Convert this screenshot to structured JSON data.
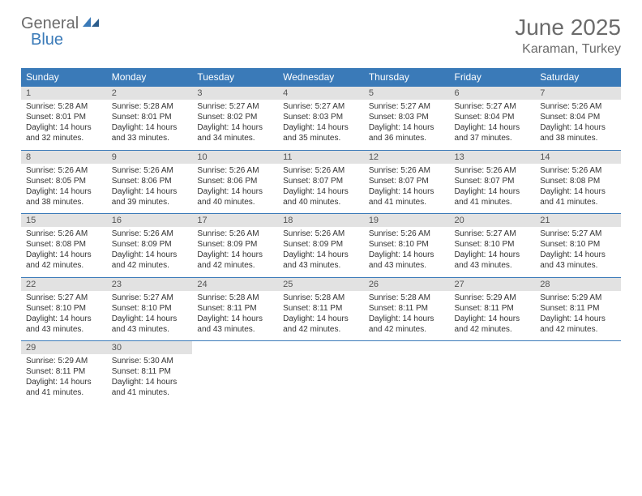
{
  "logo": {
    "text1": "General",
    "text2": "Blue"
  },
  "title": "June 2025",
  "location": "Karaman, Turkey",
  "colors": {
    "header_bg": "#3a7ab8",
    "header_fg": "#ffffff",
    "daynum_bg": "#e2e2e2",
    "daynum_fg": "#555555",
    "border": "#3a7ab8",
    "title_fg": "#6b6b6b",
    "logo_gray": "#6b6b6b",
    "logo_blue": "#3a7ab8"
  },
  "day_headers": [
    "Sunday",
    "Monday",
    "Tuesday",
    "Wednesday",
    "Thursday",
    "Friday",
    "Saturday"
  ],
  "weeks": [
    [
      {
        "n": "1",
        "sunrise": "Sunrise: 5:28 AM",
        "sunset": "Sunset: 8:01 PM",
        "day1": "Daylight: 14 hours",
        "day2": "and 32 minutes."
      },
      {
        "n": "2",
        "sunrise": "Sunrise: 5:28 AM",
        "sunset": "Sunset: 8:01 PM",
        "day1": "Daylight: 14 hours",
        "day2": "and 33 minutes."
      },
      {
        "n": "3",
        "sunrise": "Sunrise: 5:27 AM",
        "sunset": "Sunset: 8:02 PM",
        "day1": "Daylight: 14 hours",
        "day2": "and 34 minutes."
      },
      {
        "n": "4",
        "sunrise": "Sunrise: 5:27 AM",
        "sunset": "Sunset: 8:03 PM",
        "day1": "Daylight: 14 hours",
        "day2": "and 35 minutes."
      },
      {
        "n": "5",
        "sunrise": "Sunrise: 5:27 AM",
        "sunset": "Sunset: 8:03 PM",
        "day1": "Daylight: 14 hours",
        "day2": "and 36 minutes."
      },
      {
        "n": "6",
        "sunrise": "Sunrise: 5:27 AM",
        "sunset": "Sunset: 8:04 PM",
        "day1": "Daylight: 14 hours",
        "day2": "and 37 minutes."
      },
      {
        "n": "7",
        "sunrise": "Sunrise: 5:26 AM",
        "sunset": "Sunset: 8:04 PM",
        "day1": "Daylight: 14 hours",
        "day2": "and 38 minutes."
      }
    ],
    [
      {
        "n": "8",
        "sunrise": "Sunrise: 5:26 AM",
        "sunset": "Sunset: 8:05 PM",
        "day1": "Daylight: 14 hours",
        "day2": "and 38 minutes."
      },
      {
        "n": "9",
        "sunrise": "Sunrise: 5:26 AM",
        "sunset": "Sunset: 8:06 PM",
        "day1": "Daylight: 14 hours",
        "day2": "and 39 minutes."
      },
      {
        "n": "10",
        "sunrise": "Sunrise: 5:26 AM",
        "sunset": "Sunset: 8:06 PM",
        "day1": "Daylight: 14 hours",
        "day2": "and 40 minutes."
      },
      {
        "n": "11",
        "sunrise": "Sunrise: 5:26 AM",
        "sunset": "Sunset: 8:07 PM",
        "day1": "Daylight: 14 hours",
        "day2": "and 40 minutes."
      },
      {
        "n": "12",
        "sunrise": "Sunrise: 5:26 AM",
        "sunset": "Sunset: 8:07 PM",
        "day1": "Daylight: 14 hours",
        "day2": "and 41 minutes."
      },
      {
        "n": "13",
        "sunrise": "Sunrise: 5:26 AM",
        "sunset": "Sunset: 8:07 PM",
        "day1": "Daylight: 14 hours",
        "day2": "and 41 minutes."
      },
      {
        "n": "14",
        "sunrise": "Sunrise: 5:26 AM",
        "sunset": "Sunset: 8:08 PM",
        "day1": "Daylight: 14 hours",
        "day2": "and 41 minutes."
      }
    ],
    [
      {
        "n": "15",
        "sunrise": "Sunrise: 5:26 AM",
        "sunset": "Sunset: 8:08 PM",
        "day1": "Daylight: 14 hours",
        "day2": "and 42 minutes."
      },
      {
        "n": "16",
        "sunrise": "Sunrise: 5:26 AM",
        "sunset": "Sunset: 8:09 PM",
        "day1": "Daylight: 14 hours",
        "day2": "and 42 minutes."
      },
      {
        "n": "17",
        "sunrise": "Sunrise: 5:26 AM",
        "sunset": "Sunset: 8:09 PM",
        "day1": "Daylight: 14 hours",
        "day2": "and 42 minutes."
      },
      {
        "n": "18",
        "sunrise": "Sunrise: 5:26 AM",
        "sunset": "Sunset: 8:09 PM",
        "day1": "Daylight: 14 hours",
        "day2": "and 43 minutes."
      },
      {
        "n": "19",
        "sunrise": "Sunrise: 5:26 AM",
        "sunset": "Sunset: 8:10 PM",
        "day1": "Daylight: 14 hours",
        "day2": "and 43 minutes."
      },
      {
        "n": "20",
        "sunrise": "Sunrise: 5:27 AM",
        "sunset": "Sunset: 8:10 PM",
        "day1": "Daylight: 14 hours",
        "day2": "and 43 minutes."
      },
      {
        "n": "21",
        "sunrise": "Sunrise: 5:27 AM",
        "sunset": "Sunset: 8:10 PM",
        "day1": "Daylight: 14 hours",
        "day2": "and 43 minutes."
      }
    ],
    [
      {
        "n": "22",
        "sunrise": "Sunrise: 5:27 AM",
        "sunset": "Sunset: 8:10 PM",
        "day1": "Daylight: 14 hours",
        "day2": "and 43 minutes."
      },
      {
        "n": "23",
        "sunrise": "Sunrise: 5:27 AM",
        "sunset": "Sunset: 8:10 PM",
        "day1": "Daylight: 14 hours",
        "day2": "and 43 minutes."
      },
      {
        "n": "24",
        "sunrise": "Sunrise: 5:28 AM",
        "sunset": "Sunset: 8:11 PM",
        "day1": "Daylight: 14 hours",
        "day2": "and 43 minutes."
      },
      {
        "n": "25",
        "sunrise": "Sunrise: 5:28 AM",
        "sunset": "Sunset: 8:11 PM",
        "day1": "Daylight: 14 hours",
        "day2": "and 42 minutes."
      },
      {
        "n": "26",
        "sunrise": "Sunrise: 5:28 AM",
        "sunset": "Sunset: 8:11 PM",
        "day1": "Daylight: 14 hours",
        "day2": "and 42 minutes."
      },
      {
        "n": "27",
        "sunrise": "Sunrise: 5:29 AM",
        "sunset": "Sunset: 8:11 PM",
        "day1": "Daylight: 14 hours",
        "day2": "and 42 minutes."
      },
      {
        "n": "28",
        "sunrise": "Sunrise: 5:29 AM",
        "sunset": "Sunset: 8:11 PM",
        "day1": "Daylight: 14 hours",
        "day2": "and 42 minutes."
      }
    ],
    [
      {
        "n": "29",
        "sunrise": "Sunrise: 5:29 AM",
        "sunset": "Sunset: 8:11 PM",
        "day1": "Daylight: 14 hours",
        "day2": "and 41 minutes."
      },
      {
        "n": "30",
        "sunrise": "Sunrise: 5:30 AM",
        "sunset": "Sunset: 8:11 PM",
        "day1": "Daylight: 14 hours",
        "day2": "and 41 minutes."
      },
      null,
      null,
      null,
      null,
      null
    ]
  ]
}
